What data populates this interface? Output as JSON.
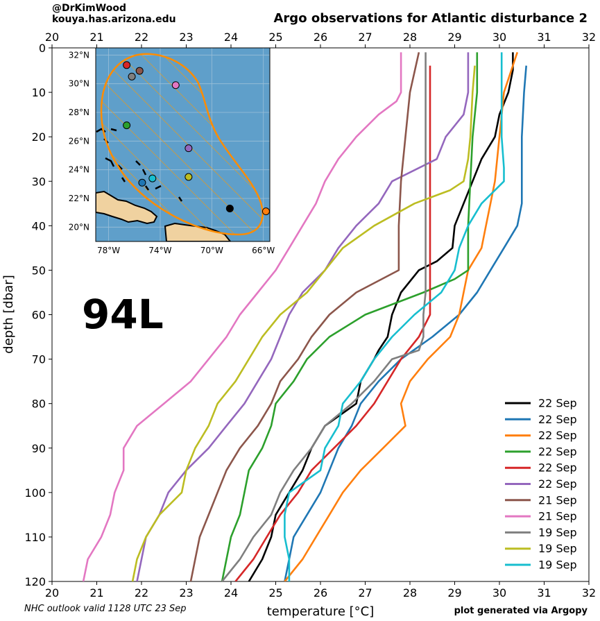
{
  "header": {
    "handle": "@DrKimWood",
    "site": "kouya.has.arizona.edu"
  },
  "footer": {
    "outlook": "NHC outlook valid 1128 UTC 23 Sep",
    "credit": "plot generated via Argopy"
  },
  "storm_label": "94L",
  "colors": {
    "ocean": "#5f9fca",
    "land": "#f0d2a0",
    "cone": "#ff8c00"
  },
  "chart_data": {
    "type": "line",
    "title": "Argo observations for Atlantic disturbance 2",
    "xlabel": "temperature [°C]",
    "ylabel": "depth [dbar]",
    "xlim": [
      20,
      32
    ],
    "ylim": [
      120,
      0
    ],
    "xticks": [
      "20",
      "21",
      "22",
      "23",
      "24",
      "25",
      "26",
      "27",
      "28",
      "29",
      "30",
      "31",
      "32"
    ],
    "yticks": [
      "0",
      "10",
      "20",
      "30",
      "40",
      "50",
      "60",
      "70",
      "80",
      "90",
      "100",
      "110",
      "120"
    ],
    "legend_position": "lower-right",
    "series": [
      {
        "name": "22 Sep",
        "color": "#000000",
        "depth": [
          1,
          5,
          10,
          15,
          20,
          25,
          30,
          35,
          40,
          45,
          48,
          50,
          55,
          60,
          65,
          68,
          70,
          75,
          80,
          85,
          90,
          95,
          100,
          105,
          110,
          115,
          120
        ],
        "temp": [
          30.3,
          30.3,
          30.2,
          30.0,
          29.9,
          29.6,
          29.4,
          29.2,
          29.0,
          28.95,
          28.6,
          28.2,
          27.8,
          27.6,
          27.5,
          27.3,
          27.2,
          26.9,
          26.8,
          26.1,
          25.8,
          25.6,
          25.3,
          25.0,
          24.9,
          24.7,
          24.4
        ]
      },
      {
        "name": "22 Sep",
        "color": "#1f77b4",
        "depth": [
          4,
          10,
          20,
          30,
          35,
          40,
          45,
          50,
          55,
          60,
          65,
          70,
          75,
          80,
          85,
          90,
          95,
          100,
          105,
          110,
          115,
          120
        ],
        "temp": [
          30.6,
          30.55,
          30.5,
          30.5,
          30.5,
          30.4,
          30.1,
          29.8,
          29.5,
          29.1,
          28.5,
          27.8,
          27.3,
          26.9,
          26.7,
          26.4,
          26.2,
          26.0,
          25.7,
          25.4,
          25.3,
          25.2
        ]
      },
      {
        "name": "22 Sep",
        "color": "#ff7f0e",
        "depth": [
          1,
          10,
          20,
          30,
          35,
          40,
          45,
          50,
          55,
          60,
          65,
          70,
          75,
          80,
          85,
          90,
          95,
          100,
          105,
          110,
          115,
          120
        ],
        "temp": [
          30.4,
          30.1,
          30.0,
          29.9,
          29.8,
          29.7,
          29.6,
          29.3,
          29.2,
          29.1,
          28.9,
          28.4,
          28.0,
          27.8,
          27.9,
          27.4,
          26.9,
          26.5,
          26.2,
          25.9,
          25.6,
          25.2
        ]
      },
      {
        "name": "22 Sep",
        "color": "#2ca02c",
        "depth": [
          1,
          10,
          20,
          30,
          40,
          50,
          52,
          55,
          60,
          65,
          70,
          75,
          80,
          85,
          90,
          95,
          100,
          105,
          110,
          115,
          120
        ],
        "temp": [
          29.5,
          29.5,
          29.4,
          29.35,
          29.3,
          29.3,
          29.0,
          28.3,
          27.0,
          26.2,
          25.7,
          25.4,
          25.0,
          24.9,
          24.7,
          24.4,
          24.3,
          24.2,
          24.0,
          23.9,
          23.8
        ]
      },
      {
        "name": "22 Sep",
        "color": "#d62728",
        "depth": [
          4,
          20,
          40,
          60,
          65,
          70,
          75,
          80,
          85,
          90,
          95,
          100,
          105,
          110,
          115,
          120
        ],
        "temp": [
          28.45,
          28.45,
          28.45,
          28.45,
          28.2,
          27.8,
          27.5,
          27.2,
          26.8,
          26.3,
          25.8,
          25.5,
          25.1,
          24.8,
          24.5,
          24.1
        ]
      },
      {
        "name": "22 Sep",
        "color": "#9467bd",
        "depth": [
          1,
          5,
          10,
          15,
          20,
          25,
          30,
          35,
          40,
          45,
          50,
          55,
          60,
          65,
          70,
          75,
          80,
          85,
          90,
          95,
          100,
          105,
          110,
          115,
          120
        ],
        "temp": [
          29.3,
          29.3,
          29.3,
          29.2,
          28.8,
          28.6,
          27.6,
          27.3,
          26.8,
          26.4,
          26.1,
          25.6,
          25.3,
          25.1,
          24.9,
          24.6,
          24.3,
          23.9,
          23.5,
          23.0,
          22.6,
          22.4,
          22.1,
          22.0,
          21.9
        ]
      },
      {
        "name": "21 Sep",
        "color": "#8c564b",
        "depth": [
          1,
          10,
          20,
          30,
          40,
          50,
          55,
          60,
          65,
          70,
          75,
          80,
          85,
          90,
          95,
          100,
          105,
          110,
          115,
          120
        ],
        "temp": [
          28.2,
          28.0,
          27.9,
          27.8,
          27.75,
          27.75,
          26.8,
          26.2,
          25.8,
          25.5,
          25.1,
          24.9,
          24.6,
          24.2,
          23.9,
          23.7,
          23.5,
          23.3,
          23.2,
          23.1
        ]
      },
      {
        "name": "21 Sep",
        "color": "#e377c2",
        "depth": [
          1,
          5,
          10,
          12,
          15,
          20,
          25,
          30,
          35,
          40,
          45,
          50,
          55,
          60,
          65,
          70,
          75,
          80,
          85,
          90,
          95,
          100,
          105,
          110,
          115,
          120
        ],
        "temp": [
          27.8,
          27.8,
          27.8,
          27.7,
          27.3,
          26.8,
          26.4,
          26.1,
          25.9,
          25.6,
          25.3,
          25.0,
          24.6,
          24.2,
          23.9,
          23.5,
          23.1,
          22.5,
          21.9,
          21.6,
          21.6,
          21.4,
          21.3,
          21.1,
          20.8,
          20.7
        ]
      },
      {
        "name": "19 Sep",
        "color": "#7f7f7f",
        "depth": [
          1,
          5,
          20,
          40,
          55,
          60,
          65,
          68,
          70,
          75,
          80,
          85,
          90,
          95,
          100,
          105,
          110,
          115,
          120
        ],
        "temp": [
          28.35,
          28.35,
          28.35,
          28.35,
          28.35,
          28.3,
          28.3,
          28.2,
          27.6,
          27.2,
          26.7,
          26.1,
          25.8,
          25.4,
          25.1,
          24.9,
          24.5,
          24.2,
          23.8
        ]
      },
      {
        "name": "19 Sep",
        "color": "#bcbd22",
        "depth": [
          4,
          10,
          20,
          25,
          30,
          32,
          35,
          40,
          45,
          50,
          55,
          60,
          65,
          70,
          75,
          80,
          85,
          90,
          95,
          100,
          105,
          110,
          115,
          120
        ],
        "temp": [
          29.45,
          29.4,
          29.35,
          29.3,
          29.2,
          28.9,
          28.1,
          27.2,
          26.5,
          26.1,
          25.7,
          25.1,
          24.7,
          24.4,
          24.1,
          23.7,
          23.5,
          23.2,
          23.0,
          22.9,
          22.4,
          22.1,
          21.9,
          21.8
        ]
      },
      {
        "name": "19 Sep",
        "color": "#17becf",
        "depth": [
          1,
          10,
          20,
          27,
          30,
          35,
          40,
          45,
          50,
          55,
          60,
          65,
          70,
          75,
          80,
          85,
          90,
          95,
          100,
          105,
          110,
          115,
          120
        ],
        "temp": [
          30.05,
          30.05,
          30.05,
          30.1,
          30.1,
          29.6,
          29.3,
          29.1,
          29.0,
          28.7,
          28.1,
          27.6,
          27.2,
          26.9,
          26.5,
          26.4,
          26.1,
          26.0,
          25.3,
          25.2,
          25.2,
          25.3,
          25.3
        ]
      }
    ],
    "inset_map": {
      "lon_ticks": [
        "78°W",
        "74°W",
        "70°W",
        "66°W"
      ],
      "lat_ticks": [
        "32°N",
        "30°N",
        "28°N",
        "26°N",
        "24°N",
        "22°N",
        "20°N"
      ],
      "lon_range": [
        -79,
        -65.5
      ],
      "lat_range": [
        19,
        32.5
      ],
      "floats": [
        {
          "lon": -76.6,
          "lat": 31.3,
          "color": "#d62728"
        },
        {
          "lon": -75.6,
          "lat": 30.9,
          "color": "#8c564b"
        },
        {
          "lon": -76.2,
          "lat": 30.5,
          "color": "#7f7f7f"
        },
        {
          "lon": -72.8,
          "lat": 29.9,
          "color": "#e377c2"
        },
        {
          "lon": -76.6,
          "lat": 27.1,
          "color": "#2ca02c"
        },
        {
          "lon": -71.8,
          "lat": 25.5,
          "color": "#9467bd"
        },
        {
          "lon": -71.8,
          "lat": 23.5,
          "color": "#bcbd22"
        },
        {
          "lon": -74.6,
          "lat": 23.4,
          "color": "#17becf"
        },
        {
          "lon": -75.4,
          "lat": 23.1,
          "color": "#1f77b4"
        },
        {
          "lon": -68.6,
          "lat": 21.3,
          "color": "#000000"
        },
        {
          "lon": -65.8,
          "lat": 21.1,
          "color": "#ff7f0e"
        }
      ]
    }
  }
}
